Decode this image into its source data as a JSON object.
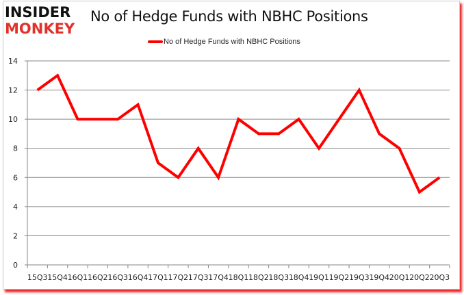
{
  "logo": {
    "line1": "INSIDER",
    "line2": "MONKEY"
  },
  "chart_data": {
    "type": "line",
    "title": "No of Hedge Funds with NBHC Positions",
    "xlabel": "",
    "ylabel": "",
    "ylim": [
      0,
      14
    ],
    "yticks": [
      0,
      2,
      4,
      6,
      8,
      10,
      12,
      14
    ],
    "grid": true,
    "legend_position": "top",
    "categories": [
      "15Q3",
      "15Q4",
      "16Q1",
      "16Q2",
      "16Q3",
      "16Q4",
      "17Q1",
      "17Q2",
      "17Q3",
      "17Q4",
      "18Q1",
      "18Q2",
      "18Q3",
      "18Q4",
      "19Q1",
      "19Q2",
      "19Q3",
      "19Q4",
      "20Q1",
      "20Q2",
      "20Q3"
    ],
    "series": [
      {
        "name": "No of Hedge Funds with NBHC Positions",
        "color": "#ff0000",
        "values": [
          12,
          13,
          10,
          10,
          10,
          11,
          7,
          6,
          8,
          6,
          10,
          9,
          9,
          10,
          8,
          10,
          12,
          9,
          8,
          5,
          6
        ]
      }
    ]
  },
  "colors": {
    "series": "#ff0000",
    "grid": "#868686",
    "shadow": "#e60000"
  }
}
